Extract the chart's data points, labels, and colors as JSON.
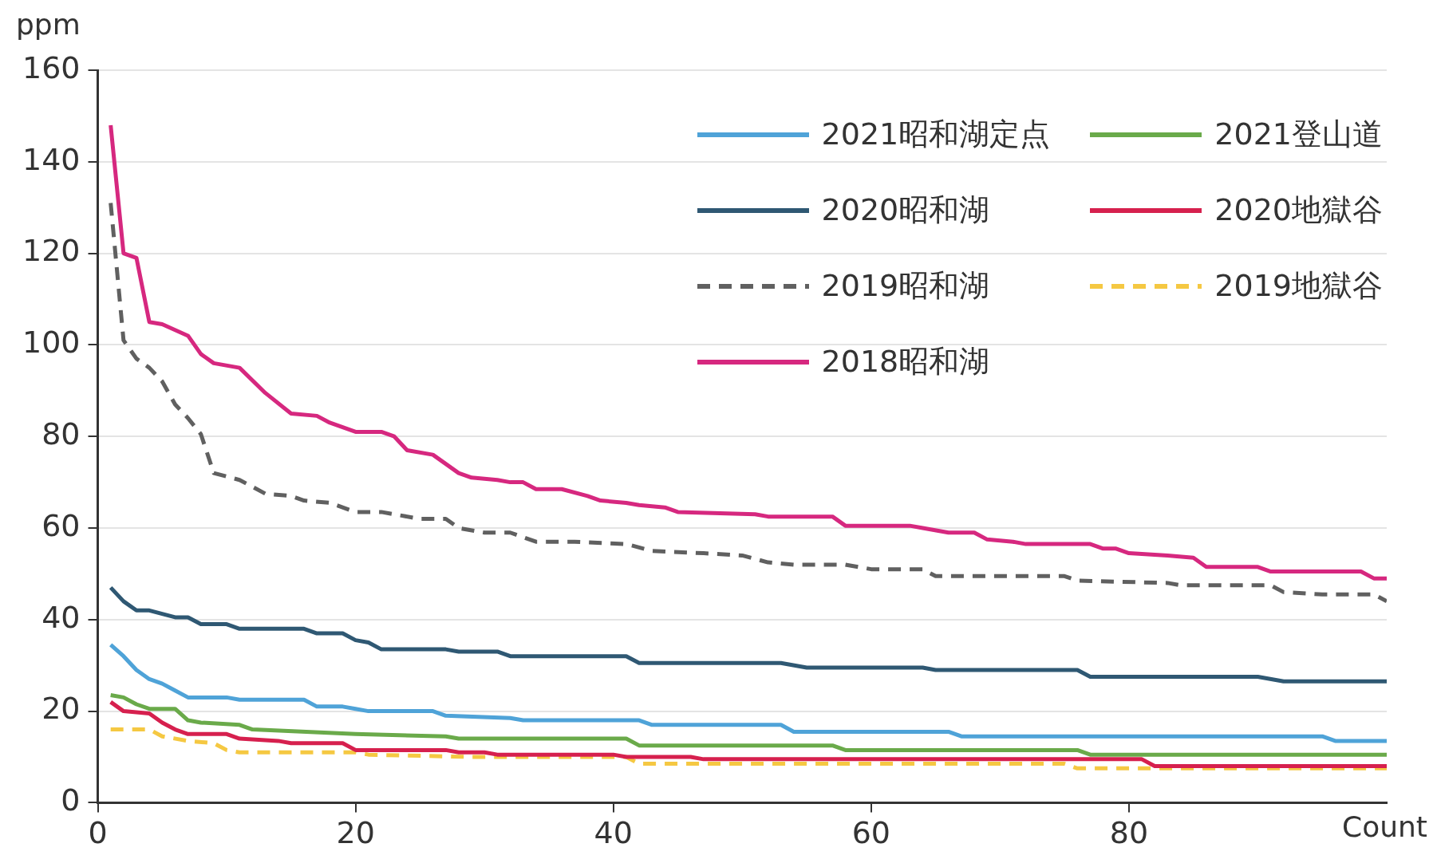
{
  "chart_data": {
    "type": "line",
    "ylabel": "ppm",
    "xlabel": "Count",
    "xlim": [
      0,
      100
    ],
    "xticks": [
      0,
      20,
      40,
      60,
      80
    ],
    "ylim": [
      0,
      160
    ],
    "yticks": [
      0,
      20,
      40,
      60,
      80,
      100,
      120,
      140,
      160
    ],
    "grid": "y",
    "legend": "top right",
    "marker": "none",
    "line_style": "solid",
    "series": [
      {
        "name": "2021昭和湖定点",
        "color": "#4fa3d8",
        "x": [
          1,
          2,
          3,
          4,
          5,
          6,
          7,
          10,
          11,
          16,
          17,
          19,
          20,
          21,
          26,
          27,
          32,
          33,
          42,
          43,
          53,
          54,
          66,
          67,
          95,
          96,
          100
        ],
        "values": [
          34.5,
          32,
          29,
          27,
          26,
          24.5,
          23,
          23,
          22.5,
          22.5,
          21,
          21,
          20.5,
          20,
          20,
          19,
          18.5,
          18,
          18,
          17,
          17,
          15.5,
          15.5,
          14.5,
          14.5,
          13.5,
          13.5
        ]
      },
      {
        "name": "2021登山道",
        "color": "#6aaa4a",
        "x": [
          1,
          2,
          3,
          4,
          6,
          7,
          8,
          11,
          12,
          20,
          27,
          28,
          41,
          42,
          57,
          58,
          76,
          77,
          100
        ],
        "values": [
          23.5,
          23,
          21.5,
          20.5,
          20.5,
          18,
          17.5,
          17,
          16,
          15,
          14.5,
          14,
          14,
          12.5,
          12.5,
          11.5,
          11.5,
          10.5,
          10.5
        ]
      },
      {
        "name": "2020昭和湖",
        "color": "#2f5873",
        "x": [
          1,
          2,
          3,
          4,
          6,
          7,
          8,
          10,
          11,
          16,
          17,
          19,
          20,
          21,
          22,
          27,
          28,
          31,
          32,
          41,
          42,
          53,
          55,
          64,
          65,
          76,
          77,
          90,
          92,
          100
        ],
        "values": [
          47,
          44,
          42,
          42,
          40.5,
          40.5,
          39,
          39,
          38,
          38,
          37,
          37,
          35.5,
          35,
          33.5,
          33.5,
          33,
          33,
          32,
          32,
          30.5,
          30.5,
          29.5,
          29.5,
          29,
          29,
          27.5,
          27.5,
          26.5,
          26.5
        ]
      },
      {
        "name": "2020地獄谷",
        "color": "#d6204e",
        "x": [
          1,
          2,
          4,
          5,
          6,
          7,
          10,
          11,
          14,
          15,
          19,
          20,
          27,
          28,
          30,
          31,
          40,
          41,
          46,
          47,
          81,
          82,
          100
        ],
        "values": [
          22,
          20,
          19.5,
          17.5,
          16,
          15,
          15,
          14,
          13.5,
          13,
          13,
          11.5,
          11.5,
          11,
          11,
          10.5,
          10.5,
          10,
          10,
          9.5,
          9.5,
          8,
          8
        ]
      },
      {
        "name": "2019昭和湖",
        "color": "#606060",
        "line_style": "dashed",
        "x": [
          1,
          2,
          3,
          4,
          5,
          6,
          7,
          8,
          9,
          11,
          13,
          15,
          16,
          18,
          20,
          22,
          23,
          25,
          27,
          28,
          30,
          32,
          34,
          37,
          41,
          43,
          47,
          50,
          52,
          54,
          58,
          60,
          64,
          65,
          75,
          76,
          83,
          84,
          91,
          92,
          95,
          99,
          100
        ],
        "values": [
          131,
          101,
          97,
          95,
          92,
          87,
          84,
          80.5,
          72,
          70.5,
          67.5,
          67,
          66,
          65.5,
          63.5,
          63.5,
          63,
          62,
          62,
          60,
          59,
          59,
          57,
          57,
          56.5,
          55,
          54.5,
          54,
          52.5,
          52,
          52,
          51,
          51,
          49.5,
          49.5,
          48.5,
          48,
          47.5,
          47.5,
          46,
          45.5,
          45.5,
          44
        ]
      },
      {
        "name": "2019地獄谷",
        "color": "#f5c842",
        "line_style": "dashed",
        "x": [
          1,
          4,
          5,
          7,
          9,
          10,
          11,
          13,
          20,
          21,
          29,
          41,
          42,
          56,
          75,
          76,
          100
        ],
        "values": [
          16,
          16,
          14.5,
          13.5,
          13,
          11.5,
          11,
          11,
          11,
          10.5,
          10,
          10,
          8.5,
          8.5,
          8.5,
          7.5,
          7.5
        ]
      },
      {
        "name": "2018昭和湖",
        "color": "#d6287f",
        "x": [
          1,
          2,
          3,
          4,
          5,
          7,
          8,
          9,
          11,
          13,
          15,
          17,
          18,
          19,
          20,
          22,
          23,
          24,
          26,
          28,
          29,
          31,
          32,
          33,
          34,
          36,
          38,
          39,
          41,
          42,
          44,
          45,
          51,
          52,
          57,
          58,
          63,
          64,
          66,
          68,
          69,
          71,
          72,
          77,
          78,
          79,
          80,
          83,
          85,
          86,
          90,
          91,
          98,
          99,
          100
        ],
        "values": [
          148,
          120,
          119,
          105,
          104.5,
          102,
          98,
          96,
          95,
          89.5,
          85,
          84.5,
          83,
          82,
          81,
          81,
          80,
          77,
          76,
          72,
          71,
          70.5,
          70,
          70,
          68.5,
          68.5,
          67,
          66,
          65.5,
          65,
          64.5,
          63.5,
          63,
          62.5,
          62.5,
          60.5,
          60.5,
          60,
          59,
          59,
          57.5,
          57,
          56.5,
          56.5,
          55.5,
          55.5,
          54.5,
          54,
          53.5,
          51.5,
          51.5,
          50.5,
          50.5,
          49,
          49
        ]
      }
    ]
  }
}
